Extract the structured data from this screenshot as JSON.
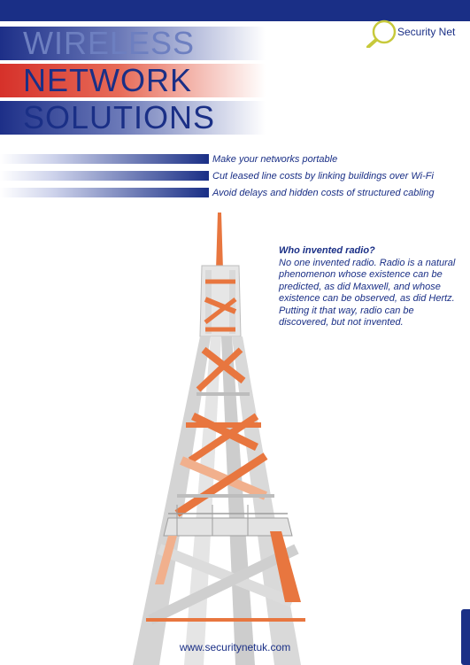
{
  "header": {
    "brand": "Security Net",
    "title_lines": [
      "WIRELESS",
      "NETWORK",
      "SOLUTIONS"
    ]
  },
  "bullets": [
    "Make your networks portable",
    "Cut leased line costs by linking buildings over Wi-Fi",
    "Avoid delays and hidden costs of structured cabling"
  ],
  "callout": {
    "heading": "Who invented radio?",
    "body": "No one invented radio. Radio is a natural phenomenon whose existence can be predicted, as did Maxwell, and whose existence can be observed, as did Hertz. Putting it that way, radio can be discovered, but not invented."
  },
  "footer": {
    "url": "www.securitynetuk.com"
  },
  "colors": {
    "navy": "#1a2f86",
    "red": "#d6312a",
    "orange": "#e8763f",
    "steel": "#cfcfcf"
  }
}
